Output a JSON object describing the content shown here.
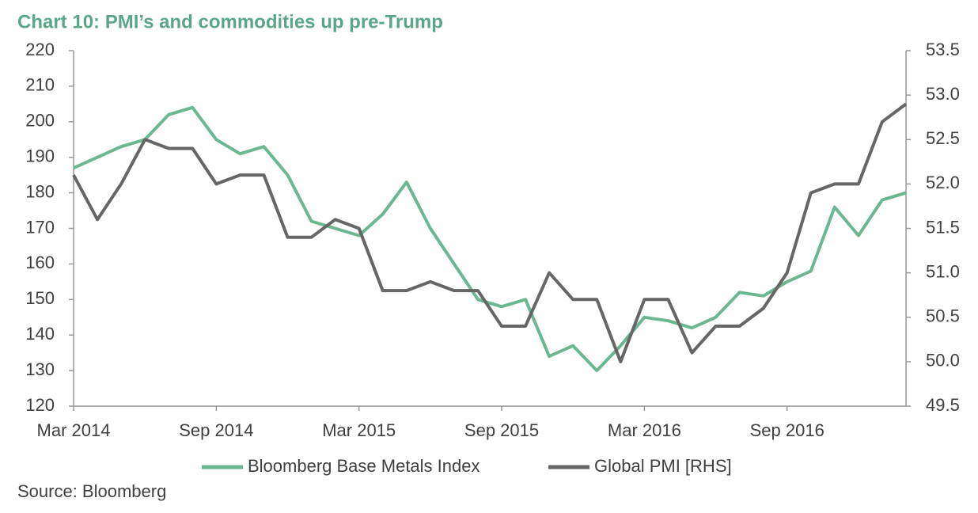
{
  "chart_data": {
    "type": "line",
    "title": "Chart 10: PMI’s and commodities up pre-Trump",
    "source": "Source: Bloomberg",
    "x": [
      "2014-03",
      "2014-04",
      "2014-05",
      "2014-06",
      "2014-07",
      "2014-08",
      "2014-09",
      "2014-10",
      "2014-11",
      "2014-12",
      "2015-01",
      "2015-02",
      "2015-03",
      "2015-04",
      "2015-05",
      "2015-06",
      "2015-07",
      "2015-08",
      "2015-09",
      "2015-10",
      "2015-11",
      "2015-12",
      "2016-01",
      "2016-02",
      "2016-03",
      "2016-04",
      "2016-05",
      "2016-06",
      "2016-07",
      "2016-08",
      "2016-09",
      "2016-10",
      "2016-11",
      "2016-12",
      "2017-01",
      "2017-02"
    ],
    "series": [
      {
        "name": "Bloomberg Base Metals Index",
        "color": "#6ab792",
        "axis": "y",
        "values": [
          187,
          190,
          193,
          195,
          202,
          204,
          195,
          191,
          193,
          185,
          172,
          170,
          168,
          174,
          183,
          170,
          160,
          150,
          148,
          150,
          134,
          137,
          130,
          137,
          145,
          144,
          142,
          145,
          152,
          151,
          155,
          158,
          176,
          168,
          178,
          180
        ]
      },
      {
        "name": "Global PMI [RHS]",
        "color": "#666666",
        "axis": "y2",
        "values": [
          52.1,
          51.6,
          52.0,
          52.5,
          52.4,
          52.4,
          52.0,
          52.1,
          52.1,
          51.4,
          51.4,
          51.6,
          51.5,
          50.8,
          50.8,
          50.9,
          50.8,
          50.8,
          50.4,
          50.4,
          51.0,
          50.7,
          50.7,
          50.0,
          50.7,
          50.7,
          50.1,
          50.4,
          50.4,
          50.6,
          51.0,
          51.9,
          52.0,
          52.0,
          52.7,
          52.9
        ]
      }
    ],
    "xlim": [
      "2014-03",
      "2017-02"
    ],
    "xticks": [
      {
        "value": "2014-03",
        "label": "Mar 2014"
      },
      {
        "value": "2014-09",
        "label": "Sep 2014"
      },
      {
        "value": "2015-03",
        "label": "Mar 2015"
      },
      {
        "value": "2015-09",
        "label": "Sep 2015"
      },
      {
        "value": "2016-03",
        "label": "Mar 2016"
      },
      {
        "value": "2016-09",
        "label": "Sep 2016"
      }
    ],
    "ylim": [
      120,
      220
    ],
    "yticks": [
      120,
      130,
      140,
      150,
      160,
      170,
      180,
      190,
      200,
      210,
      220
    ],
    "y2lim": [
      49.5,
      53.5
    ],
    "y2ticks": [
      {
        "value": 49.5,
        "label": "49.5"
      },
      {
        "value": 50,
        "label": "50.0"
      },
      {
        "value": 50.5,
        "label": "50.5"
      },
      {
        "value": 51,
        "label": "51.0"
      },
      {
        "value": 51.5,
        "label": "51.5"
      },
      {
        "value": 52,
        "label": "52.0"
      },
      {
        "value": 52.5,
        "label": "52.5"
      },
      {
        "value": 53,
        "label": "53.0"
      },
      {
        "value": 53.5,
        "label": "53.5"
      }
    ],
    "legend": "bottom"
  }
}
